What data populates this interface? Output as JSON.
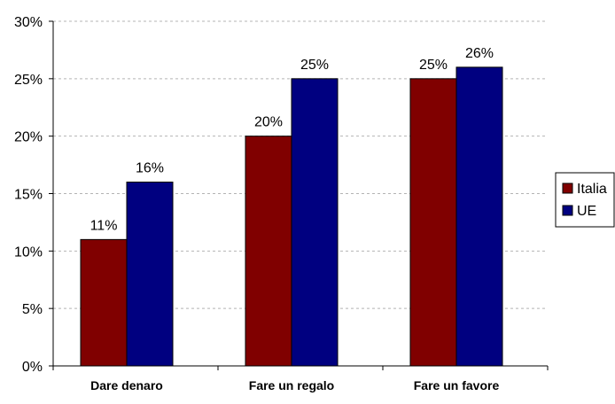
{
  "chart_data": {
    "type": "bar",
    "categories": [
      "Dare denaro",
      "Fare un regalo",
      "Fare un favore"
    ],
    "series": [
      {
        "name": "Italia",
        "color": "#800000",
        "values": [
          11,
          20,
          25
        ]
      },
      {
        "name": "UE",
        "color": "#000080",
        "values": [
          16,
          25,
          26
        ]
      }
    ],
    "data_labels": [
      [
        "11%",
        "20%",
        "25%"
      ],
      [
        "16%",
        "25%",
        "26%"
      ]
    ],
    "y_ticks": [
      "0%",
      "5%",
      "10%",
      "15%",
      "20%",
      "25%",
      "30%"
    ],
    "ylim": [
      0,
      30
    ],
    "grid": true,
    "legend_position": "right"
  }
}
